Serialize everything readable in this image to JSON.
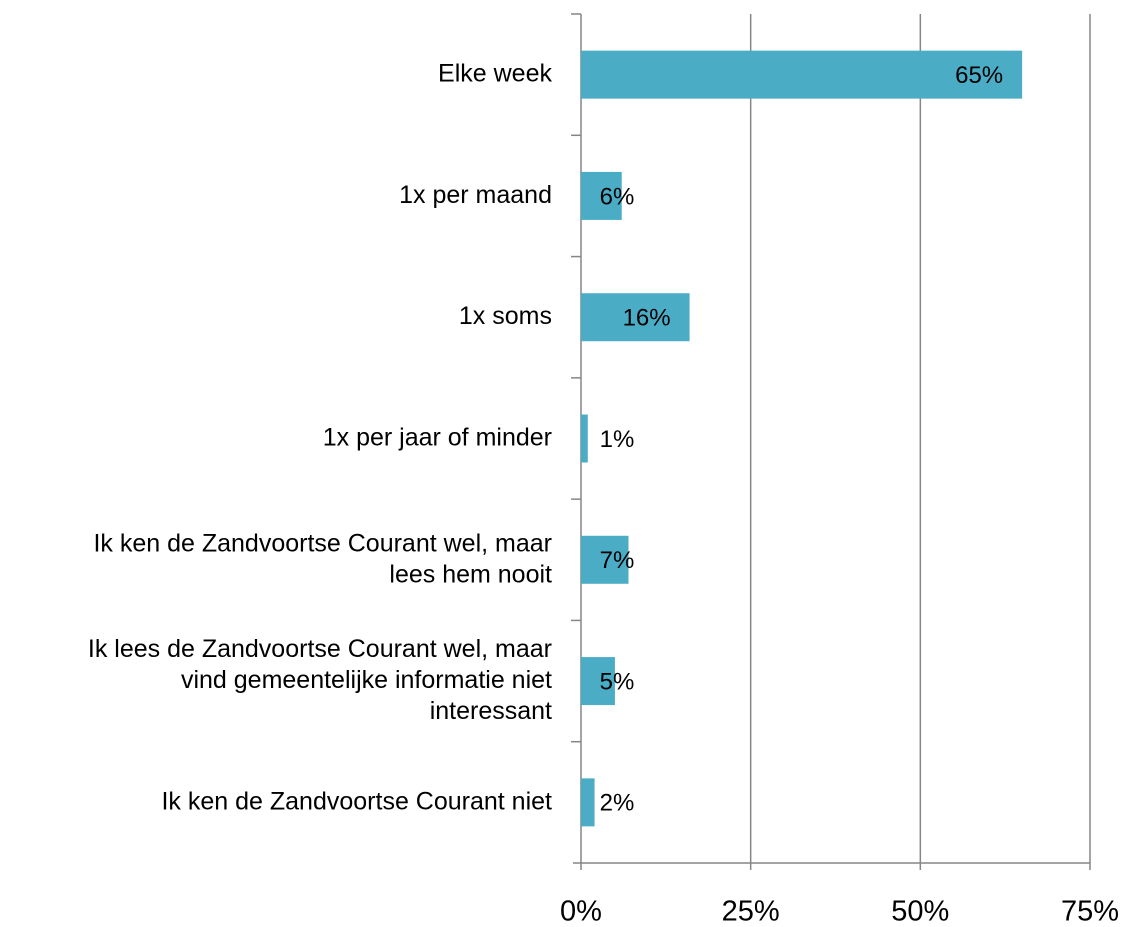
{
  "chart_data": {
    "type": "bar",
    "orientation": "horizontal",
    "categories": [
      "Elke week",
      "1x per maand",
      "1x soms",
      "1x per jaar of minder",
      "Ik ken de Zandvoortse Courant wel, maar\nlees hem nooit",
      "Ik lees de Zandvoortse Courant wel, maar\nvind gemeentelijke informatie niet\ninteressant",
      "Ik ken de Zandvoortse Courant niet"
    ],
    "values": [
      65,
      6,
      16,
      1,
      7,
      5,
      2
    ],
    "value_labels": [
      "65%",
      "6%",
      "16%",
      "1%",
      "7%",
      "5%",
      "2%"
    ],
    "color": "#4bacc6",
    "xlim": [
      0,
      75
    ],
    "xticks": [
      {
        "value": 0,
        "label": "0%"
      },
      {
        "value": 25,
        "label": "25%"
      },
      {
        "value": 50,
        "label": "50%"
      },
      {
        "value": 75,
        "label": "75%"
      }
    ],
    "grid": true
  }
}
